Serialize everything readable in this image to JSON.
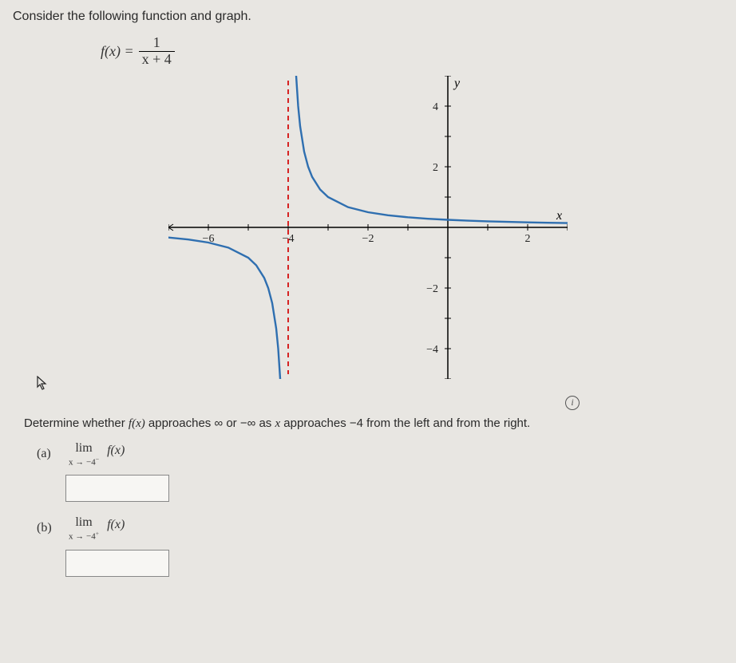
{
  "prompt": "Consider the following function and graph.",
  "formula": {
    "lhs": "f(x) =",
    "num": "1",
    "den": "x + 4"
  },
  "graph": {
    "type": "line",
    "xlim": [
      -7,
      3
    ],
    "ylim": [
      -5,
      5
    ],
    "xtick_step": 1,
    "ytick_step": 1,
    "xtick_labels": {
      "-6": "−6",
      "-4": "−4",
      "-2": "−2",
      "2": "2"
    },
    "ytick_labels": {
      "4": "4",
      "2": "2",
      "-2": "−2",
      "-4": "−4"
    },
    "axis_labels": {
      "x": "x",
      "y": "y"
    },
    "axis_color": "#000000",
    "tick_color": "#000000",
    "background_color": "#e8e6e2",
    "asymptote": {
      "x": -4,
      "color": "#d62222",
      "dash": "6 5",
      "width": 2
    },
    "curve_color": "#2f6fb0",
    "curve_width": 2.4,
    "series_left_x": [
      -7,
      -6.5,
      -6,
      -5.5,
      -5,
      -4.8,
      -4.6,
      -4.5,
      -4.4,
      -4.3,
      -4.25,
      -4.2,
      -4.15,
      -4.12,
      -4.1,
      -4.08
    ],
    "series_right_x": [
      -3.92,
      -3.9,
      -3.88,
      -3.85,
      -3.8,
      -3.75,
      -3.7,
      -3.6,
      -3.5,
      -3.4,
      -3.2,
      -3,
      -2.5,
      -2,
      -1.5,
      -1,
      -0.5,
      0,
      0.5,
      1,
      1.5,
      2,
      2.5,
      3
    ]
  },
  "question_pre": "Determine whether ",
  "question_fx": "f(x)",
  "question_mid1": " approaches ∞ or −∞ as ",
  "question_x": "x",
  "question_mid2": " approaches −4 from the left and from the right.",
  "parts": {
    "a": {
      "label": "(a)",
      "lim": "lim",
      "sub": "x → −4",
      "sup": "−",
      "fx": "f(x)"
    },
    "b": {
      "label": "(b)",
      "lim": "lim",
      "sub": "x → −4",
      "sup": "+",
      "fx": "f(x)"
    }
  },
  "info_icon": "i"
}
